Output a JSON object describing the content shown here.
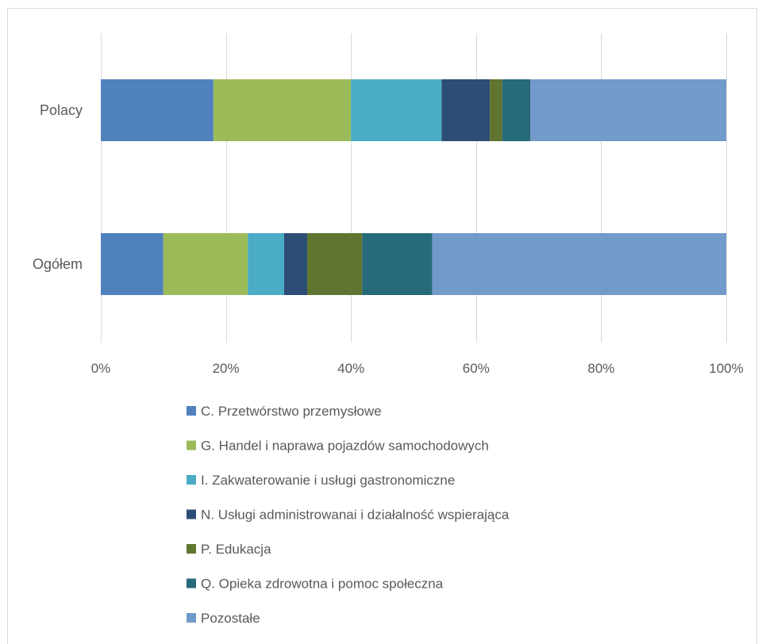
{
  "chart_data": {
    "type": "bar",
    "orientation": "horizontal",
    "stacked": "percent",
    "categories": [
      "Polacy",
      "Ogółem"
    ],
    "series": [
      {
        "name": "C. Przetwórstwo przemysłowe",
        "color": "#4f81bd",
        "values": [
          18,
          10
        ]
      },
      {
        "name": "G. Handel i naprawa pojazdów samochodowych",
        "color": "#9bbb59",
        "values": [
          22,
          13.5
        ]
      },
      {
        "name": "I. Zakwaterowanie i usługi gastronomiczne",
        "color": "#4bacc6",
        "values": [
          14.5,
          5.8
        ]
      },
      {
        "name": "N. Usługi administrowanai i działalność wspierająca",
        "color": "#2c4d75",
        "values": [
          7.7,
          3.7
        ]
      },
      {
        "name": "P. Edukacja",
        "color": "#5f7530",
        "values": [
          2,
          8.8
        ]
      },
      {
        "name": "Q. Opieka zdrowotna i pomoc społeczna",
        "color": "#276a7c",
        "values": [
          4.5,
          11.2
        ]
      },
      {
        "name": "Pozostałe",
        "color": "#729aca",
        "values": [
          31.3,
          47
        ]
      }
    ],
    "xlim": [
      0,
      100
    ],
    "xticks": [
      0,
      20,
      40,
      60,
      80,
      100
    ],
    "xtick_labels": [
      "0%",
      "20%",
      "40%",
      "60%",
      "80%",
      "100%"
    ],
    "grid": "vertical",
    "legend_position": "bottom"
  }
}
